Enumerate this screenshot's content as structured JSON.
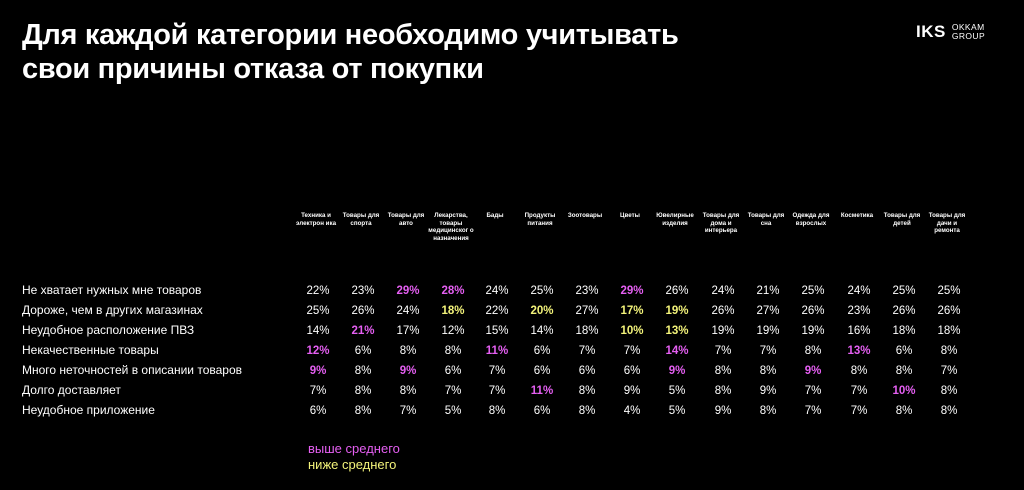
{
  "title_line1": "Для каждой категории необходимо учитывать",
  "title_line2": "свои причины отказа от покупки",
  "logo": {
    "mark": "IKS",
    "line1": "OKKAM",
    "line2": "GROUP"
  },
  "columns": [
    "Техника и электрон ика",
    "Товары для спорта",
    "Товары для авто",
    "Лекарства, товары медицинског о назначения",
    "Бады",
    "Продукты питания",
    "Зоотовары",
    "Цветы",
    "Ювелирные изделия",
    "Товары для дома и интерьера",
    "Товары для сна",
    "Одежда для взрослых",
    "Косметика",
    "Товары для детей",
    "Товары для дачи и ремонта"
  ],
  "rows": [
    {
      "label": "Не хватает нужных мне товаров",
      "values": [
        "22%",
        "23%",
        "29%",
        "28%",
        "24%",
        "25%",
        "23%",
        "29%",
        "26%",
        "24%",
        "21%",
        "25%",
        "24%",
        "25%",
        "25%"
      ],
      "marks": [
        "",
        "",
        "a",
        "a",
        "",
        "",
        "",
        "a",
        "",
        "",
        "",
        "",
        "",
        "",
        ""
      ]
    },
    {
      "label": "Дороже, чем в других магазинах",
      "values": [
        "25%",
        "26%",
        "24%",
        "18%",
        "22%",
        "20%",
        "27%",
        "17%",
        "19%",
        "26%",
        "27%",
        "26%",
        "23%",
        "26%",
        "26%"
      ],
      "marks": [
        "",
        "",
        "",
        "b",
        "",
        "b",
        "",
        "b",
        "b",
        "",
        "",
        "",
        "",
        "",
        ""
      ]
    },
    {
      "label": "Неудобное расположение ПВЗ",
      "values": [
        "14%",
        "21%",
        "17%",
        "12%",
        "15%",
        "14%",
        "18%",
        "10%",
        "13%",
        "19%",
        "19%",
        "19%",
        "16%",
        "18%",
        "18%"
      ],
      "marks": [
        "",
        "a",
        "",
        "",
        "",
        "",
        "",
        "b",
        "b",
        "",
        "",
        "",
        "",
        "",
        ""
      ]
    },
    {
      "label": "Некачественные товары",
      "values": [
        "12%",
        "6%",
        "8%",
        "8%",
        "11%",
        "6%",
        "7%",
        "7%",
        "14%",
        "7%",
        "7%",
        "8%",
        "13%",
        "6%",
        "8%"
      ],
      "marks": [
        "a",
        "",
        "",
        "",
        "a",
        "",
        "",
        "",
        "a",
        "",
        "",
        "",
        "a",
        "",
        ""
      ]
    },
    {
      "label": "Много неточностей в описании товаров",
      "values": [
        "9%",
        "8%",
        "9%",
        "6%",
        "7%",
        "6%",
        "6%",
        "6%",
        "9%",
        "8%",
        "8%",
        "9%",
        "8%",
        "8%",
        "7%"
      ],
      "marks": [
        "a",
        "",
        "a",
        "",
        "",
        "",
        "",
        "",
        "a",
        "",
        "",
        "a",
        "",
        "",
        ""
      ]
    },
    {
      "label": "Долго доставляет",
      "values": [
        "7%",
        "8%",
        "8%",
        "7%",
        "7%",
        "11%",
        "8%",
        "9%",
        "5%",
        "8%",
        "9%",
        "7%",
        "7%",
        "10%",
        "8%"
      ],
      "marks": [
        "",
        "",
        "",
        "",
        "",
        "a",
        "",
        "",
        "",
        "",
        "",
        "",
        "",
        "a",
        ""
      ]
    },
    {
      "label": "Неудобное приложение",
      "values": [
        "6%",
        "8%",
        "7%",
        "5%",
        "8%",
        "6%",
        "8%",
        "4%",
        "5%",
        "9%",
        "8%",
        "7%",
        "7%",
        "8%",
        "8%"
      ],
      "marks": [
        "",
        "",
        "",
        "",
        "",
        "",
        "",
        "",
        "",
        "",
        "",
        "",
        "",
        "",
        ""
      ]
    }
  ],
  "legend": {
    "above": "выше среднего",
    "below": "ниже среднего"
  },
  "colors": {
    "above": "#e55ff2",
    "below": "#f3f37a"
  }
}
